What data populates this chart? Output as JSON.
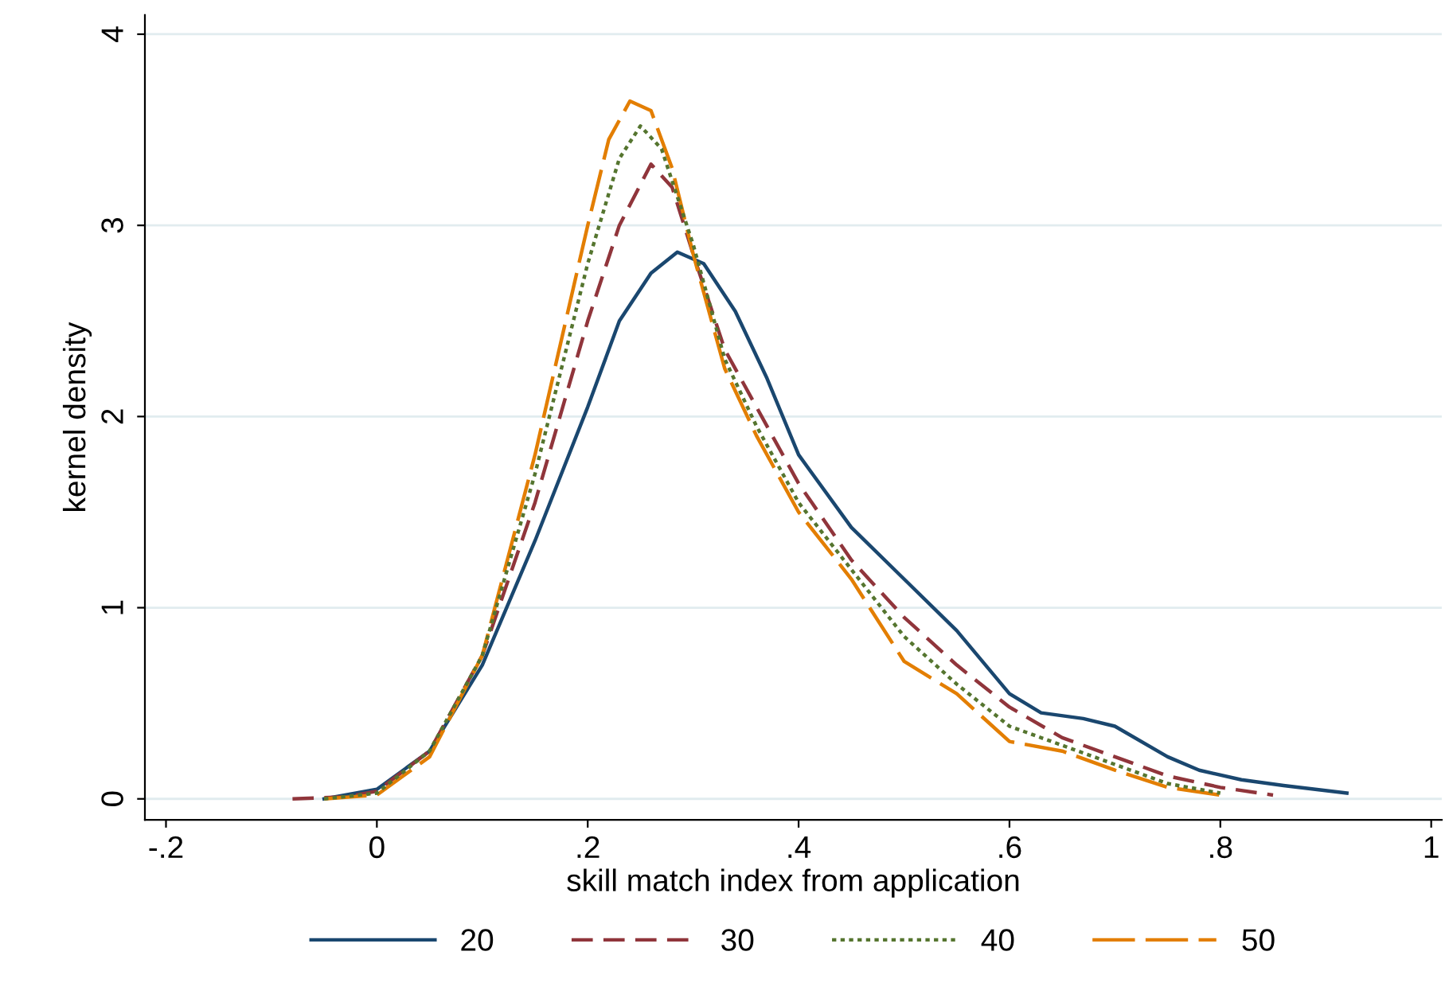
{
  "chart_data": {
    "type": "line",
    "xlabel": "skill match index from application",
    "ylabel": "kernel density",
    "xlim": [
      -0.22,
      1.01
    ],
    "ylim": [
      -0.11,
      4.1
    ],
    "xticks": [
      {
        "value": -0.2,
        "label": "-.2"
      },
      0,
      {
        "value": 0.2,
        "label": ".2"
      },
      {
        "value": 0.4,
        "label": ".4"
      },
      {
        "value": 0.6,
        "label": ".6"
      },
      {
        "value": 0.8,
        "label": ".8"
      },
      1
    ],
    "yticks": [
      0,
      1,
      2,
      3,
      4
    ],
    "grid": "y",
    "legend": "bottom",
    "series": [
      {
        "name": "20",
        "color": "#1a476f",
        "line_style": "solid",
        "x": [
          -0.05,
          0,
          0.05,
          0.1,
          0.15,
          0.2,
          0.23,
          0.26,
          0.285,
          0.31,
          0.34,
          0.37,
          0.4,
          0.45,
          0.5,
          0.55,
          0.6,
          0.63,
          0.67,
          0.7,
          0.75,
          0.78,
          0.82,
          0.86,
          0.92
        ],
        "values": [
          0.0,
          0.05,
          0.25,
          0.7,
          1.35,
          2.05,
          2.5,
          2.75,
          2.86,
          2.8,
          2.55,
          2.2,
          1.8,
          1.42,
          1.15,
          0.88,
          0.55,
          0.45,
          0.42,
          0.38,
          0.22,
          0.15,
          0.1,
          0.07,
          0.03
        ]
      },
      {
        "name": "30",
        "color": "#90353b",
        "line_style": "dashed",
        "x": [
          -0.08,
          -0.03,
          0,
          0.05,
          0.1,
          0.15,
          0.2,
          0.23,
          0.26,
          0.28,
          0.3,
          0.33,
          0.36,
          0.4,
          0.45,
          0.5,
          0.55,
          0.6,
          0.65,
          0.7,
          0.75,
          0.8,
          0.85
        ],
        "values": [
          0.0,
          0.01,
          0.04,
          0.25,
          0.75,
          1.55,
          2.5,
          3.0,
          3.32,
          3.2,
          2.85,
          2.35,
          2.05,
          1.65,
          1.25,
          0.95,
          0.7,
          0.48,
          0.32,
          0.22,
          0.12,
          0.06,
          0.02
        ]
      },
      {
        "name": "40",
        "color": "#55752f",
        "line_style": "dotted",
        "x": [
          -0.05,
          0,
          0.05,
          0.1,
          0.15,
          0.2,
          0.23,
          0.25,
          0.27,
          0.3,
          0.33,
          0.36,
          0.4,
          0.45,
          0.5,
          0.55,
          0.6,
          0.65,
          0.7,
          0.75,
          0.8
        ],
        "values": [
          0.0,
          0.03,
          0.25,
          0.75,
          1.7,
          2.8,
          3.35,
          3.52,
          3.4,
          2.9,
          2.3,
          1.95,
          1.55,
          1.2,
          0.85,
          0.6,
          0.38,
          0.28,
          0.18,
          0.08,
          0.03
        ]
      },
      {
        "name": "50",
        "color": "#e37e00",
        "line_style": "longdash",
        "x": [
          -0.05,
          0,
          0.05,
          0.1,
          0.15,
          0.2,
          0.22,
          0.24,
          0.26,
          0.28,
          0.3,
          0.33,
          0.36,
          0.4,
          0.45,
          0.5,
          0.55,
          0.6,
          0.65,
          0.7,
          0.75,
          0.8
        ],
        "values": [
          0.0,
          0.02,
          0.22,
          0.75,
          1.8,
          3.0,
          3.45,
          3.65,
          3.6,
          3.3,
          2.85,
          2.25,
          1.9,
          1.5,
          1.15,
          0.72,
          0.55,
          0.3,
          0.25,
          0.15,
          0.06,
          0.02
        ]
      }
    ]
  }
}
